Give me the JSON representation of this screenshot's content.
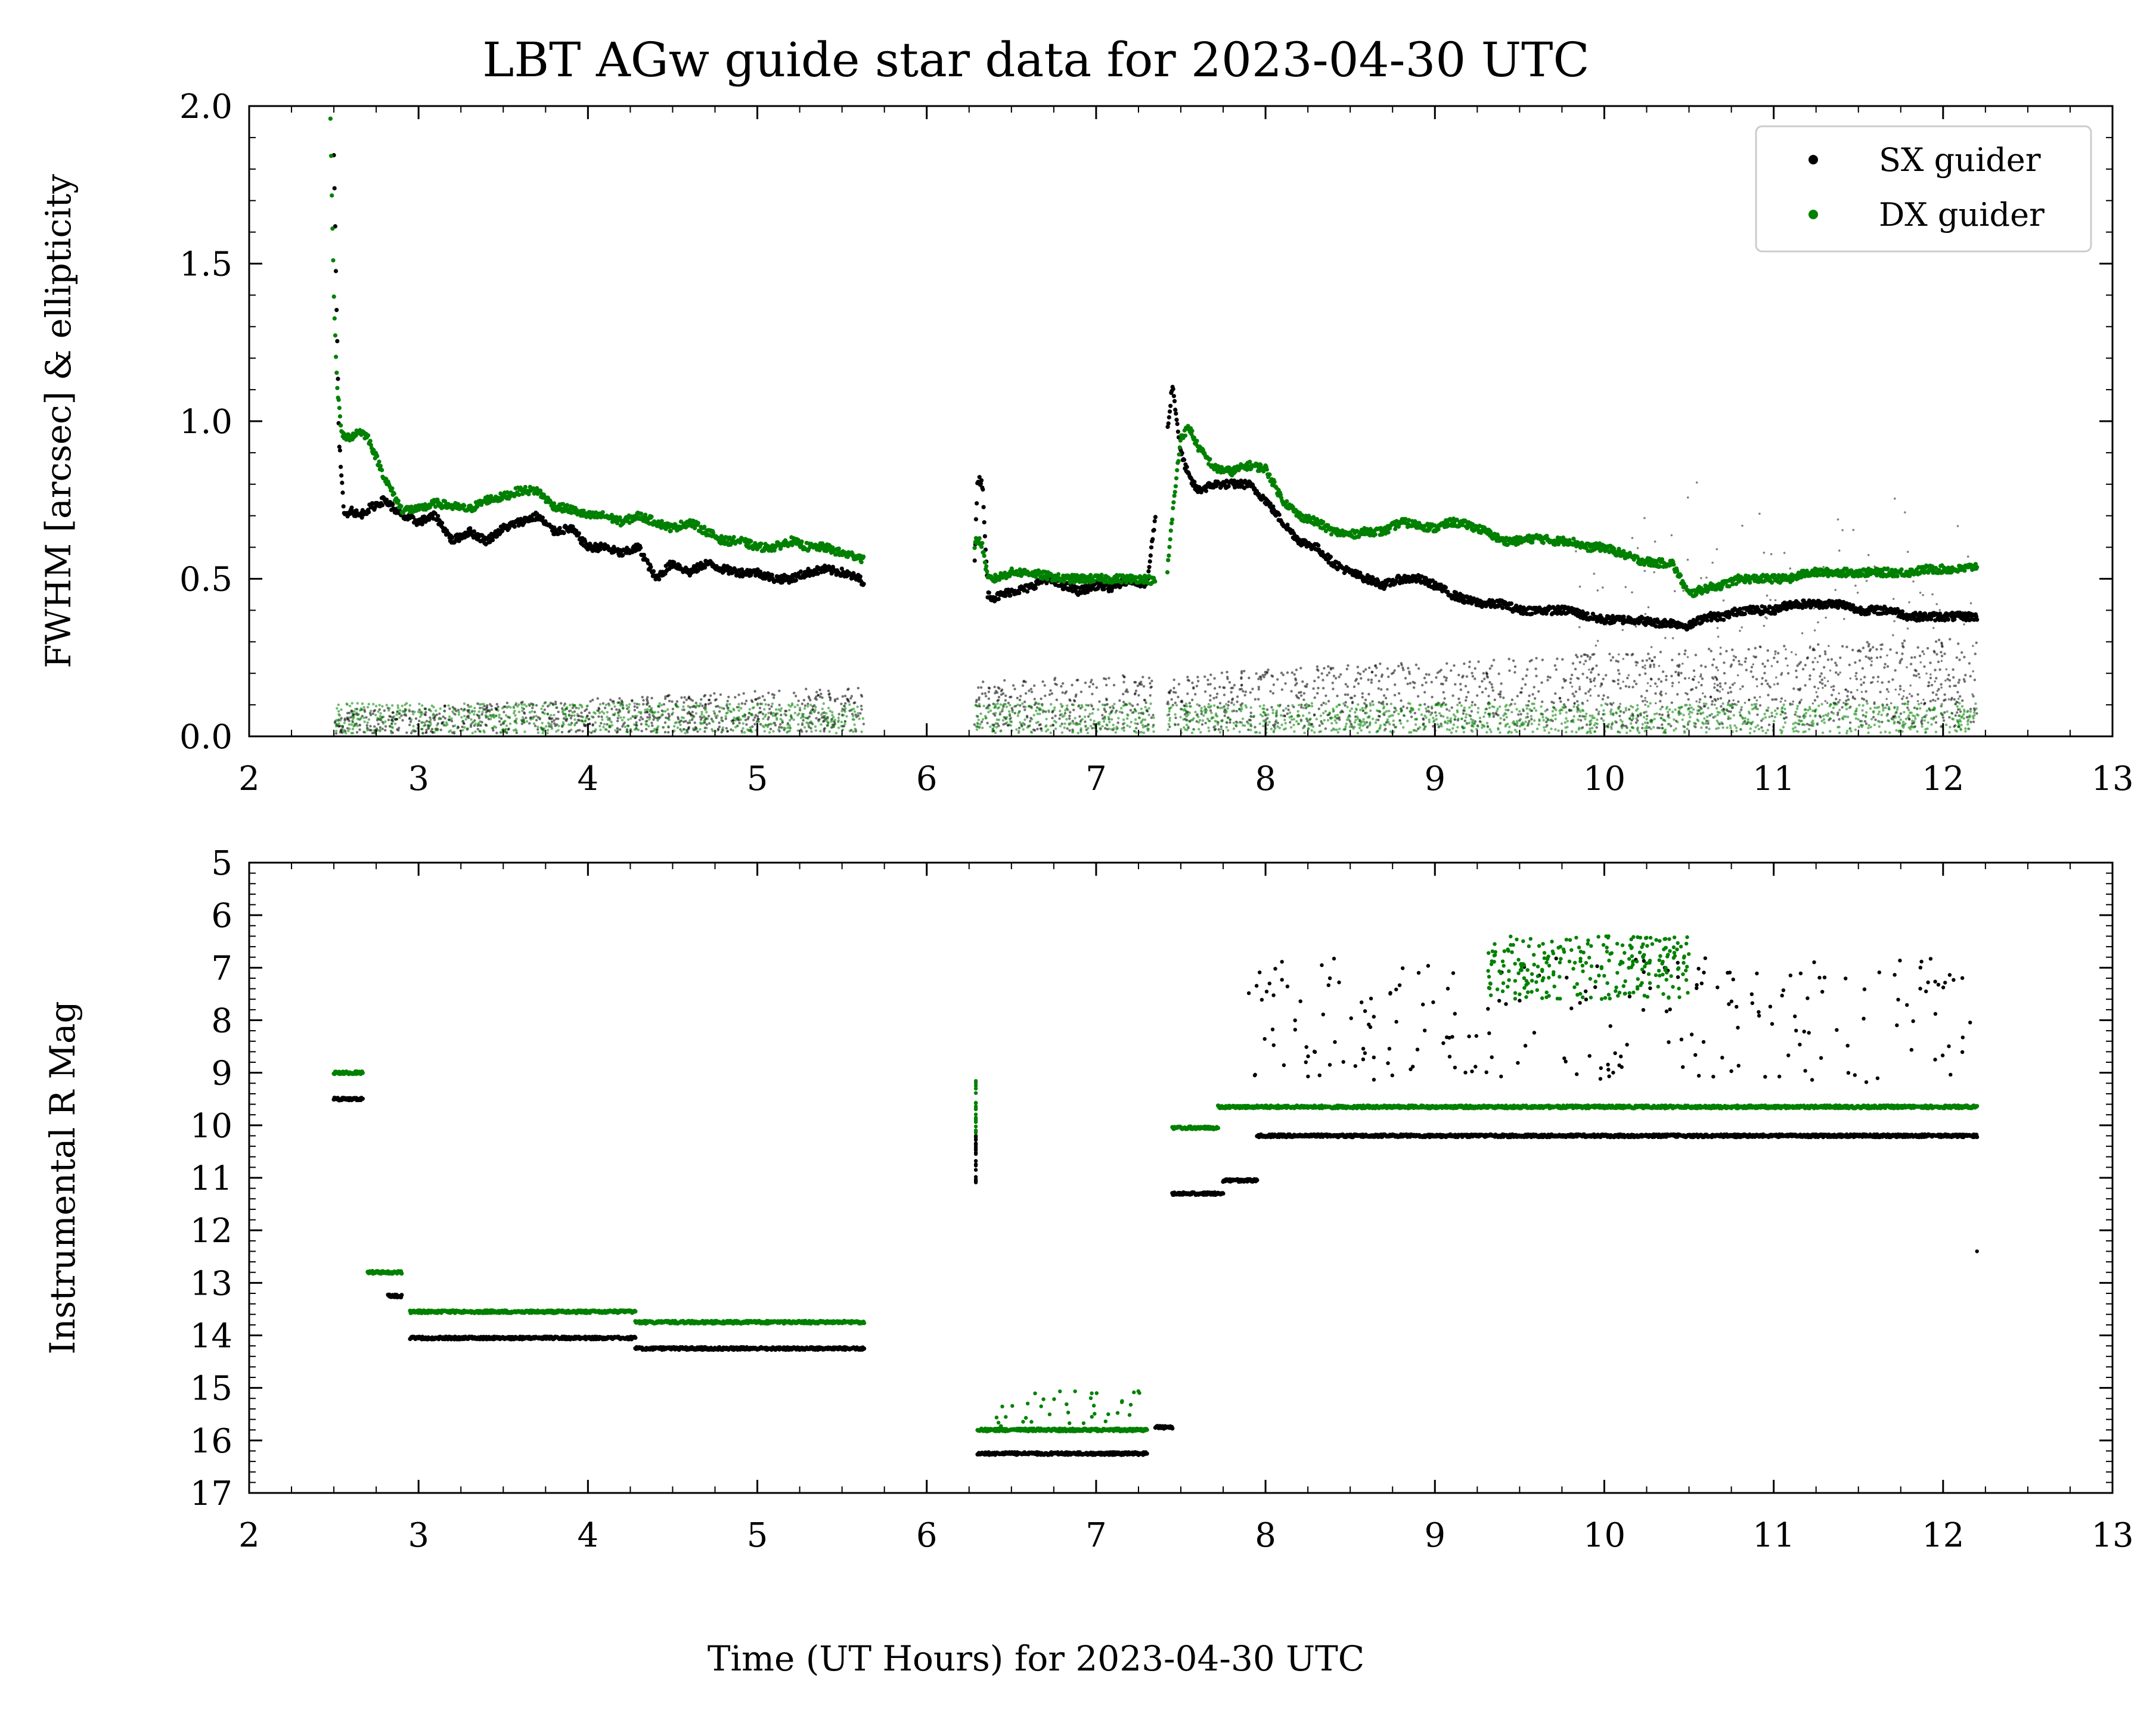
{
  "chart_data": [
    {
      "type": "scatter",
      "title": "LBT AGw guide star data for 2023-04-30 UTC",
      "xlabel": "",
      "ylabel": "FWHM [arcsec] & ellipticity",
      "xlim": [
        2,
        13
      ],
      "ylim": [
        0,
        2.0
      ],
      "x_ticks": [
        "2",
        "3",
        "4",
        "5",
        "6",
        "7",
        "8",
        "9",
        "10",
        "11",
        "12",
        "13"
      ],
      "y_ticks": [
        "0.0",
        "0.5",
        "1.0",
        "1.5",
        "2.0"
      ],
      "legend": {
        "placement": "top-right",
        "entries": [
          "SX guider",
          "DX guider"
        ]
      },
      "series": [
        {
          "name": "SX guider",
          "kind": "FWHM",
          "color": "#000000",
          "x": [
            2.5,
            2.53,
            2.56,
            2.6,
            2.65,
            2.7,
            2.8,
            2.9,
            3.0,
            3.1,
            3.2,
            3.3,
            3.4,
            3.5,
            3.6,
            3.7,
            3.8,
            3.9,
            4.0,
            4.1,
            4.2,
            4.3,
            4.4,
            4.5,
            4.6,
            4.7,
            4.8,
            4.9,
            5.0,
            5.1,
            5.2,
            5.3,
            5.4,
            5.5,
            5.6,
            5.63,
            6.28,
            6.3,
            6.33,
            6.36,
            6.4,
            6.5,
            6.6,
            6.7,
            6.8,
            6.9,
            7.0,
            7.1,
            7.2,
            7.3,
            7.35,
            7.4,
            7.45,
            7.5,
            7.55,
            7.6,
            7.7,
            7.8,
            7.9,
            8.0,
            8.1,
            8.2,
            8.3,
            8.4,
            8.5,
            8.6,
            8.7,
            8.8,
            8.9,
            9.0,
            9.1,
            9.2,
            9.3,
            9.4,
            9.5,
            9.6,
            9.7,
            9.8,
            9.9,
            10.0,
            10.1,
            10.2,
            10.3,
            10.4,
            10.5,
            10.6,
            10.7,
            10.8,
            10.9,
            11.0,
            11.1,
            11.2,
            11.3,
            11.4,
            11.5,
            11.6,
            11.7,
            11.8,
            11.9,
            12.0,
            12.1,
            12.2
          ],
          "y": [
            1.85,
            0.95,
            0.7,
            0.72,
            0.7,
            0.72,
            0.75,
            0.7,
            0.68,
            0.7,
            0.62,
            0.65,
            0.62,
            0.66,
            0.68,
            0.7,
            0.65,
            0.66,
            0.6,
            0.6,
            0.58,
            0.6,
            0.5,
            0.55,
            0.52,
            0.55,
            0.53,
            0.52,
            0.52,
            0.5,
            0.5,
            0.52,
            0.53,
            0.52,
            0.5,
            0.49,
            0.5,
            0.82,
            0.8,
            0.45,
            0.44,
            0.46,
            0.47,
            0.5,
            0.48,
            0.46,
            0.48,
            0.47,
            0.5,
            0.48,
            0.7,
            0.85,
            1.12,
            0.9,
            0.82,
            0.78,
            0.8,
            0.8,
            0.8,
            0.75,
            0.68,
            0.62,
            0.6,
            0.55,
            0.52,
            0.5,
            0.48,
            0.5,
            0.5,
            0.48,
            0.45,
            0.43,
            0.42,
            0.42,
            0.4,
            0.4,
            0.4,
            0.4,
            0.38,
            0.37,
            0.37,
            0.37,
            0.36,
            0.36,
            0.35,
            0.38,
            0.38,
            0.4,
            0.4,
            0.4,
            0.42,
            0.42,
            0.42,
            0.42,
            0.4,
            0.4,
            0.4,
            0.38,
            0.38,
            0.38,
            0.38,
            0.38
          ]
        },
        {
          "name": "DX guider",
          "kind": "FWHM",
          "color": "#008000",
          "x": [
            2.48,
            2.5,
            2.52,
            2.55,
            2.6,
            2.65,
            2.7,
            2.8,
            2.9,
            3.0,
            3.1,
            3.2,
            3.3,
            3.4,
            3.5,
            3.6,
            3.7,
            3.8,
            3.9,
            4.0,
            4.1,
            4.2,
            4.3,
            4.4,
            4.5,
            4.6,
            4.7,
            4.8,
            4.9,
            5.0,
            5.1,
            5.2,
            5.3,
            5.4,
            5.5,
            5.6,
            5.63,
            6.28,
            6.3,
            6.33,
            6.36,
            6.4,
            6.5,
            6.6,
            6.7,
            6.8,
            6.9,
            7.0,
            7.1,
            7.2,
            7.3,
            7.35,
            7.42,
            7.45,
            7.5,
            7.55,
            7.6,
            7.7,
            7.8,
            7.9,
            8.0,
            8.1,
            8.2,
            8.3,
            8.4,
            8.5,
            8.6,
            8.7,
            8.8,
            8.9,
            9.0,
            9.1,
            9.2,
            9.3,
            9.4,
            9.5,
            9.6,
            9.7,
            9.8,
            9.9,
            10.0,
            10.1,
            10.2,
            10.3,
            10.4,
            10.5,
            10.6,
            10.7,
            10.8,
            10.9,
            11.0,
            11.1,
            11.2,
            11.3,
            11.4,
            11.5,
            11.6,
            11.7,
            11.8,
            11.9,
            12.0,
            12.1,
            12.2
          ],
          "y": [
            1.95,
            1.4,
            1.1,
            0.95,
            0.95,
            0.97,
            0.95,
            0.82,
            0.72,
            0.72,
            0.74,
            0.73,
            0.72,
            0.75,
            0.76,
            0.78,
            0.78,
            0.73,
            0.72,
            0.7,
            0.7,
            0.68,
            0.7,
            0.68,
            0.66,
            0.68,
            0.65,
            0.62,
            0.62,
            0.6,
            0.6,
            0.62,
            0.6,
            0.6,
            0.58,
            0.57,
            0.56,
            0.6,
            0.63,
            0.6,
            0.5,
            0.5,
            0.52,
            0.52,
            0.51,
            0.5,
            0.5,
            0.5,
            0.5,
            0.5,
            0.5,
            0.49,
            0.52,
            0.7,
            0.95,
            0.98,
            0.92,
            0.85,
            0.84,
            0.86,
            0.85,
            0.75,
            0.7,
            0.68,
            0.65,
            0.64,
            0.65,
            0.65,
            0.68,
            0.67,
            0.66,
            0.68,
            0.67,
            0.65,
            0.62,
            0.62,
            0.63,
            0.62,
            0.62,
            0.6,
            0.6,
            0.58,
            0.56,
            0.55,
            0.55,
            0.45,
            0.47,
            0.48,
            0.5,
            0.5,
            0.5,
            0.5,
            0.52,
            0.52,
            0.52,
            0.52,
            0.52,
            0.52,
            0.52,
            0.53,
            0.53,
            0.53,
            0.54
          ]
        },
        {
          "name": "SX guider",
          "kind": "ellipticity",
          "color": "#000000",
          "ranges": [
            [
              2.5,
              5.63
            ],
            [
              6.28,
              7.35
            ],
            [
              7.42,
              12.2
            ]
          ],
          "level_start": 0.04,
          "level_end": 0.15
        },
        {
          "name": "DX guider",
          "kind": "ellipticity",
          "color": "#008000",
          "ranges": [
            [
              2.5,
              5.63
            ],
            [
              6.28,
              7.35
            ],
            [
              7.42,
              12.2
            ]
          ],
          "level_start": 0.05,
          "level_end": 0.05
        }
      ]
    },
    {
      "type": "scatter",
      "title": "",
      "xlabel": "Time (UT Hours) for 2023-04-30 UTC",
      "ylabel": "Instrumental R Mag",
      "xlim": [
        2,
        13
      ],
      "ylim": [
        17,
        5
      ],
      "y_inverted": true,
      "x_ticks": [
        "2",
        "3",
        "4",
        "5",
        "6",
        "7",
        "8",
        "9",
        "10",
        "11",
        "12",
        "13"
      ],
      "y_ticks": [
        "5",
        "6",
        "7",
        "8",
        "9",
        "10",
        "11",
        "12",
        "13",
        "14",
        "15",
        "16",
        "17"
      ],
      "series": [
        {
          "name": "SX guider",
          "color": "#000000",
          "segments": [
            {
              "x": [
                2.5,
                2.67
              ],
              "y": 9.5
            },
            {
              "x": [
                2.82,
                2.9
              ],
              "y": 13.25
            },
            {
              "x": [
                2.95,
                4.28
              ],
              "y": 14.05
            },
            {
              "x": [
                4.28,
                5.63
              ],
              "y": 14.25
            },
            {
              "x": [
                6.3,
                7.3
              ],
              "y": 16.25
            },
            {
              "x": [
                7.35,
                7.45
              ],
              "y": 15.75
            },
            {
              "x": [
                7.45,
                7.75
              ],
              "y": 11.3
            },
            {
              "x": [
                7.75,
                7.95
              ],
              "y": 11.05
            },
            {
              "x": [
                7.95,
                12.2
              ],
              "y": 10.2
            }
          ],
          "scatter_x_range": [
            7.9,
            12.2
          ],
          "scatter_y_range": [
            6.8,
            9.2
          ]
        },
        {
          "name": "DX guider",
          "color": "#008000",
          "segments": [
            {
              "x": [
                2.5,
                2.67
              ],
              "y": 9.0
            },
            {
              "x": [
                2.7,
                2.9
              ],
              "y": 12.8
            },
            {
              "x": [
                2.95,
                4.28
              ],
              "y": 13.55
            },
            {
              "x": [
                4.28,
                5.63
              ],
              "y": 13.75
            },
            {
              "x": [
                6.3,
                7.3
              ],
              "y": 15.8
            },
            {
              "x": [
                7.45,
                7.72
              ],
              "y": 10.05
            },
            {
              "x": [
                7.72,
                12.2
              ],
              "y": 9.65
            }
          ],
          "scatter_x_range": [
            9.3,
            10.5
          ],
          "scatter_y_range": [
            6.4,
            7.6
          ]
        }
      ]
    }
  ]
}
